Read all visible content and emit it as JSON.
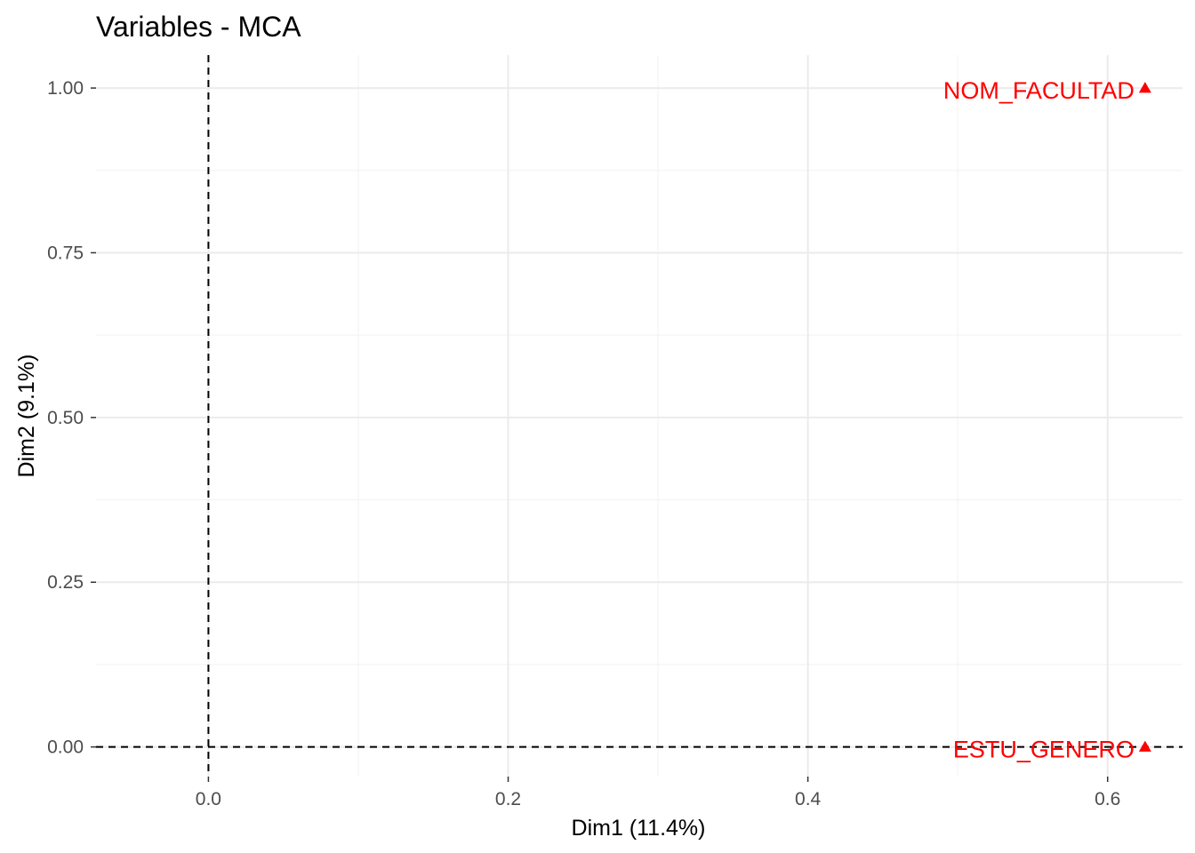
{
  "chart_data": {
    "type": "scatter",
    "title": "Variables - MCA",
    "xlabel": "Dim1 (11.4%)",
    "ylabel": "Dim2 (9.1%)",
    "xlim": [
      -0.075,
      0.65
    ],
    "ylim": [
      -0.045,
      1.05
    ],
    "xticks": [
      0.0,
      0.2,
      0.4,
      0.6
    ],
    "xtick_labels": [
      "0.0",
      "0.2",
      "0.4",
      "0.6"
    ],
    "yticks": [
      0.0,
      0.25,
      0.5,
      0.75,
      1.0
    ],
    "ytick_labels": [
      "0.00",
      "0.25",
      "0.50",
      "0.75",
      "1.00"
    ],
    "grid": true,
    "reference_lines": {
      "x": 0,
      "y": 0,
      "style": "dashed"
    },
    "color": "#FF0000",
    "marker": "triangle",
    "points": [
      {
        "label": "NOM_FACULTAD",
        "x": 0.625,
        "y": 1.0
      },
      {
        "label": "ESTU_GENERO",
        "x": 0.625,
        "y": 0.0
      }
    ]
  }
}
